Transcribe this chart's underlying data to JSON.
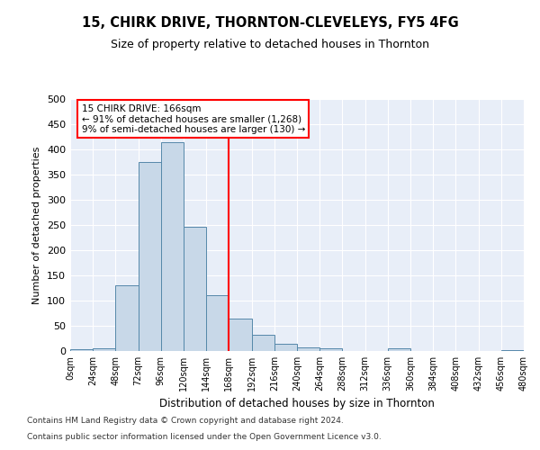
{
  "title": "15, CHIRK DRIVE, THORNTON-CLEVELEYS, FY5 4FG",
  "subtitle": "Size of property relative to detached houses in Thornton",
  "xlabel": "Distribution of detached houses by size in Thornton",
  "ylabel": "Number of detached properties",
  "bar_color": "#c8d8e8",
  "bar_edge_color": "#5588aa",
  "background_color": "#e8eef8",
  "grid_color": "#ffffff",
  "vline_x": 168,
  "vline_color": "red",
  "annotation_line1": "15 CHIRK DRIVE: 166sqm",
  "annotation_line2": "← 91% of detached houses are smaller (1,268)",
  "annotation_line3": "9% of semi-detached houses are larger (130) →",
  "bins": [
    0,
    24,
    48,
    72,
    96,
    120,
    144,
    168,
    192,
    216,
    240,
    264,
    288,
    312,
    336,
    360,
    384,
    408,
    432,
    456,
    480
  ],
  "bar_heights": [
    3,
    5,
    130,
    375,
    415,
    247,
    111,
    65,
    33,
    14,
    7,
    5,
    0,
    0,
    6,
    0,
    0,
    0,
    0,
    2
  ],
  "ylim": [
    0,
    500
  ],
  "yticks": [
    0,
    50,
    100,
    150,
    200,
    250,
    300,
    350,
    400,
    450,
    500
  ],
  "footnote1": "Contains HM Land Registry data © Crown copyright and database right 2024.",
  "footnote2": "Contains public sector information licensed under the Open Government Licence v3.0."
}
